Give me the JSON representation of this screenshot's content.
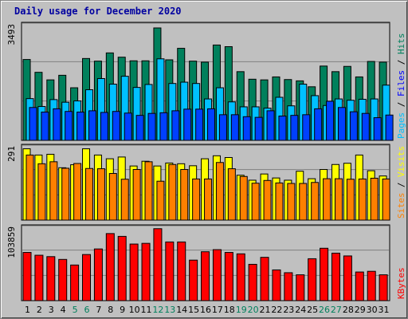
{
  "title": "Daily usage for December 2020",
  "chart_data": {
    "type": "bar",
    "title": "Daily usage for December 2020",
    "x_labels": [
      "1",
      "2",
      "3",
      "4",
      "5",
      "6",
      "7",
      "8",
      "9",
      "10",
      "11",
      "12",
      "13",
      "14",
      "15",
      "16",
      "17",
      "18",
      "19",
      "20",
      "21",
      "22",
      "23",
      "24",
      "25",
      "26",
      "27",
      "28",
      "29",
      "30",
      "31"
    ],
    "weekend_days": [
      "5",
      "6",
      "12",
      "13",
      "19",
      "20",
      "26",
      "27"
    ],
    "colors": {
      "hits": "#00805c",
      "files": "#00c0ff",
      "pages": "#0040ff",
      "visits": "#ffff00",
      "sites": "#ff8000",
      "kbytes": "#ff0000",
      "weekday_label": "#000000",
      "weekend_label": "#00805c"
    },
    "panels": [
      {
        "id": "hits-files-pages",
        "ylim": [
          0,
          3493
        ],
        "max_label": "3493",
        "legend": [
          {
            "label": "Pages",
            "color": "#00c0ff"
          },
          {
            "label": "Files",
            "color": "#0000ff"
          },
          {
            "label": "Hits",
            "color": "#00805c"
          }
        ],
        "series": [
          {
            "name": "Hits",
            "color": "#00805c",
            "values": [
              2460,
              2070,
              1840,
              1980,
              1600,
              2490,
              2410,
              2660,
              2530,
              2420,
              2420,
              3420,
              2450,
              2800,
              2410,
              2380,
              2900,
              2850,
              2090,
              1860,
              1840,
              1930,
              1850,
              1810,
              1630,
              2260,
              2090,
              2250,
              1930,
              2400,
              2380
            ]
          },
          {
            "name": "Files",
            "color": "#00c0ff",
            "values": [
              1270,
              1030,
              1240,
              1160,
              1200,
              1540,
              1880,
              1710,
              1950,
              1610,
              1700,
              2480,
              1730,
              1770,
              1730,
              1260,
              1600,
              1170,
              1020,
              1020,
              980,
              1310,
              1050,
              1710,
              1360,
              1060,
              1260,
              1220,
              1250,
              1260,
              1680
            ]
          },
          {
            "name": "Pages",
            "color": "#0040ff",
            "values": [
              1000,
              860,
              960,
              880,
              860,
              900,
              850,
              880,
              830,
              760,
              820,
              840,
              900,
              950,
              950,
              960,
              780,
              780,
              720,
              700,
              900,
              740,
              760,
              780,
              960,
              1190,
              1000,
              870,
              820,
              690,
              770
            ]
          }
        ]
      },
      {
        "id": "visits-sites",
        "ylim": [
          0,
          291
        ],
        "max_label": "291",
        "legend": [
          {
            "label": "Sites",
            "color": "#ff8000"
          },
          {
            "label": "Visits",
            "color": "#ffff00"
          }
        ],
        "series": [
          {
            "name": "Visits",
            "color": "#ffff00",
            "values": [
              286,
              261,
              264,
              210,
              222,
              286,
              261,
              246,
              253,
              217,
              236,
              217,
              229,
              226,
              218,
              246,
              258,
              251,
              180,
              160,
              185,
              169,
              160,
              196,
              166,
              203,
              223,
              228,
              261,
              198,
              177
            ]
          },
          {
            "name": "Sites",
            "color": "#ff8000",
            "values": [
              261,
              226,
              234,
              208,
              227,
              207,
              206,
              187,
              164,
              203,
              234,
              156,
              223,
              203,
              165,
              165,
              231,
              206,
              175,
              148,
              159,
              149,
              147,
              147,
              151,
              166,
              166,
              164,
              165,
              168,
              165
            ]
          }
        ]
      },
      {
        "id": "kbytes",
        "ylim": [
          0,
          103859
        ],
        "max_label": "103859",
        "legend": [
          {
            "label": "KBytes",
            "color": "#ff0000"
          }
        ],
        "series": [
          {
            "name": "KBytes",
            "color": "#ff0000",
            "values": [
              69000,
              65000,
              63000,
              59000,
              51000,
              66000,
              74000,
              96000,
              92000,
              81000,
              82000,
              103000,
              84000,
              84000,
              58000,
              70000,
              73000,
              69000,
              67000,
              52000,
              62000,
              44000,
              40000,
              37000,
              60000,
              75000,
              68000,
              64000,
              41000,
              42000,
              37000
            ]
          }
        ]
      }
    ]
  }
}
